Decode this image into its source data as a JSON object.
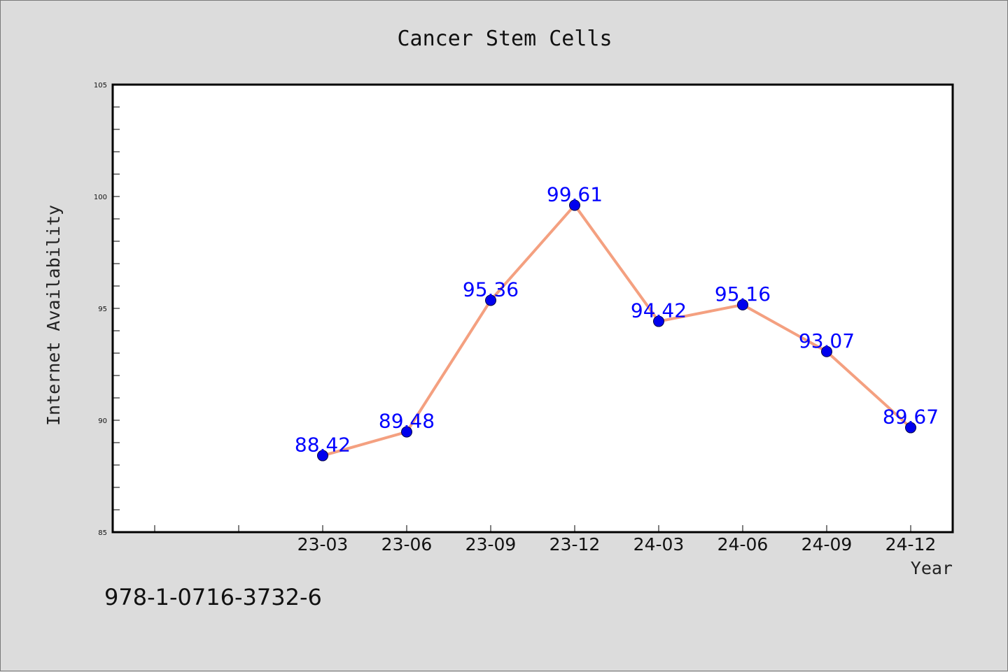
{
  "chart_data": {
    "type": "line",
    "title": "Cancer Stem Cells",
    "xlabel": "Year",
    "ylabel": "Internet Availability",
    "categories": [
      "23-03",
      "23-06",
      "23-09",
      "23-12",
      "24-03",
      "24-06",
      "24-09",
      "24-12"
    ],
    "series": [
      {
        "values": [
          88.42,
          89.48,
          95.36,
          99.61,
          94.42,
          95.16,
          93.07,
          89.67
        ],
        "data_labels": [
          "88.42",
          "89.48",
          "95.36",
          "99.61",
          "94.42",
          "95.16",
          "93.07",
          "89.67"
        ],
        "line_color": "#f4a080",
        "marker_color": "#0000ee"
      }
    ],
    "ylim": [
      85,
      105
    ],
    "y_ticks": [
      "85",
      "90",
      "95",
      "100",
      "105"
    ],
    "grid": false,
    "legend": "none",
    "data_label_color": "#0000ff"
  },
  "footer": {
    "isbn": "978-1-0716-3732-6"
  },
  "colors": {
    "background": "#dcdcdc",
    "plot_background": "#ffffff",
    "axis": "#000000"
  }
}
